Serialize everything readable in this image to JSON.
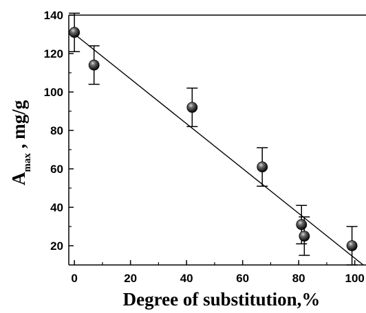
{
  "chart_data": {
    "type": "scatter",
    "xlabel": "Degree of substitution,%",
    "ylabel": {
      "main": "A",
      "subscript": "max",
      "rest": " , mg/g"
    },
    "xlim": [
      -2,
      104
    ],
    "ylim": [
      10,
      140
    ],
    "xticks": [
      0,
      20,
      40,
      60,
      80,
      100
    ],
    "yticks": [
      20,
      40,
      60,
      80,
      100,
      120,
      140
    ],
    "grid": false,
    "series": [
      {
        "points": [
          {
            "x": 0,
            "y": 131,
            "err": 10
          },
          {
            "x": 7,
            "y": 114,
            "err": 10
          },
          {
            "x": 42,
            "y": 92,
            "err": 10
          },
          {
            "x": 67,
            "y": 61,
            "err": 10
          },
          {
            "x": 81,
            "y": 31,
            "err": 10
          },
          {
            "x": 82,
            "y": 25,
            "err": 10
          },
          {
            "x": 99,
            "y": 20,
            "err": 10
          }
        ],
        "fit_line": {
          "x": [
            -1,
            103
          ],
          "y": [
            131.3,
            10
          ]
        }
      }
    ]
  }
}
